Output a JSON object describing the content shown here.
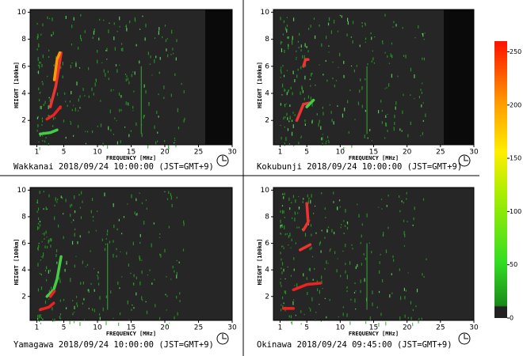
{
  "panels": [
    {
      "caption": "Wakkanai 2018/09/24 10:00:00 (JST=GMT+9)",
      "x_label": "FREQUENCY [MHz]",
      "y_label": "HEIGHT [100km]",
      "xlim": [
        0,
        30
      ],
      "ylim": [
        0.2,
        10.2
      ],
      "xticks": [
        1,
        5,
        10,
        15,
        20,
        25,
        30
      ],
      "yticks": [
        2,
        4,
        6,
        8,
        10
      ]
    },
    {
      "caption": "Kokubunji 2018/09/24 10:00:00 (JST=GMT+9)",
      "x_label": "FREQUENCY [MHz]",
      "y_label": "HEIGHT [100km]",
      "xlim": [
        0,
        30
      ],
      "ylim": [
        0.2,
        10.2
      ],
      "xticks": [
        1,
        5,
        10,
        15,
        20,
        25,
        30
      ],
      "yticks": [
        2,
        4,
        6,
        8,
        10
      ]
    },
    {
      "caption": "Yamagawa 2018/09/24 10:00:00 (JST=GMT+9)",
      "x_label": "FREQUENCY [MHz]",
      "y_label": "HEIGHT [100km]",
      "xlim": [
        0,
        30
      ],
      "ylim": [
        0.2,
        10.2
      ],
      "xticks": [
        1,
        5,
        10,
        15,
        20,
        25,
        30
      ],
      "yticks": [
        2,
        4,
        6,
        8,
        10
      ]
    },
    {
      "caption": "Okinawa 2018/09/24 09:45:00 (JST=GMT+9)",
      "x_label": "FREQUENCY [MHz]",
      "y_label": "HEIGHT [100km]",
      "xlim": [
        0,
        30
      ],
      "ylim": [
        0.2,
        10.2
      ],
      "xticks": [
        1,
        5,
        10,
        15,
        20,
        25,
        30
      ],
      "yticks": [
        2,
        4,
        6,
        8,
        10
      ]
    }
  ],
  "colorbar": {
    "lim": [
      0,
      260
    ],
    "ticks": [
      0,
      50,
      100,
      150,
      200,
      250
    ]
  }
}
